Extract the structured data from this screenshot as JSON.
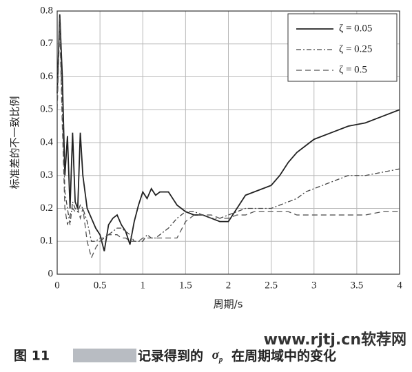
{
  "chart_data": {
    "type": "line",
    "x_label": "周期/s",
    "y_label": "标准差的不一致比例",
    "x": [
      0,
      0.03,
      0.06,
      0.09,
      0.12,
      0.15,
      0.18,
      0.21,
      0.24,
      0.27,
      0.3,
      0.35,
      0.4,
      0.45,
      0.5,
      0.55,
      0.6,
      0.65,
      0.7,
      0.75,
      0.8,
      0.85,
      0.9,
      0.95,
      1.0,
      1.05,
      1.1,
      1.15,
      1.2,
      1.3,
      1.4,
      1.5,
      1.6,
      1.7,
      1.8,
      1.9,
      2.0,
      2.1,
      2.2,
      2.3,
      2.4,
      2.5,
      2.6,
      2.7,
      2.8,
      2.9,
      3.0,
      3.2,
      3.4,
      3.6,
      3.8,
      4.0
    ],
    "series": [
      {
        "name": "ζ = 0.05",
        "color": "#222222",
        "style": "solid",
        "values": [
          0.55,
          0.79,
          0.6,
          0.3,
          0.42,
          0.2,
          0.43,
          0.22,
          0.2,
          0.43,
          0.3,
          0.2,
          0.17,
          0.14,
          0.12,
          0.07,
          0.15,
          0.17,
          0.18,
          0.15,
          0.13,
          0.09,
          0.16,
          0.21,
          0.25,
          0.23,
          0.26,
          0.24,
          0.25,
          0.25,
          0.21,
          0.19,
          0.18,
          0.18,
          0.17,
          0.16,
          0.16,
          0.2,
          0.24,
          0.25,
          0.26,
          0.27,
          0.3,
          0.34,
          0.37,
          0.39,
          0.41,
          0.43,
          0.45,
          0.46,
          0.48,
          0.5
        ]
      },
      {
        "name": "ζ = 0.25",
        "color": "#444444",
        "style": "dashdot",
        "values": [
          0.55,
          0.78,
          0.5,
          0.25,
          0.2,
          0.15,
          0.22,
          0.2,
          0.19,
          0.21,
          0.2,
          0.16,
          0.1,
          0.1,
          0.11,
          0.11,
          0.12,
          0.13,
          0.14,
          0.14,
          0.13,
          0.12,
          0.1,
          0.1,
          0.1,
          0.12,
          0.11,
          0.11,
          0.12,
          0.14,
          0.17,
          0.19,
          0.19,
          0.18,
          0.17,
          0.17,
          0.18,
          0.19,
          0.2,
          0.2,
          0.2,
          0.2,
          0.21,
          0.22,
          0.23,
          0.25,
          0.26,
          0.28,
          0.3,
          0.3,
          0.31,
          0.32
        ]
      },
      {
        "name": "ζ = 0.5",
        "color": "#555555",
        "style": "dashed",
        "values": [
          0.5,
          0.75,
          0.45,
          0.2,
          0.15,
          0.18,
          0.2,
          0.19,
          0.2,
          0.17,
          0.2,
          0.1,
          0.05,
          0.08,
          0.1,
          0.11,
          0.12,
          0.12,
          0.12,
          0.11,
          0.11,
          0.1,
          0.1,
          0.1,
          0.11,
          0.11,
          0.11,
          0.11,
          0.11,
          0.11,
          0.11,
          0.16,
          0.18,
          0.18,
          0.18,
          0.17,
          0.17,
          0.18,
          0.18,
          0.19,
          0.19,
          0.19,
          0.19,
          0.19,
          0.18,
          0.18,
          0.18,
          0.18,
          0.18,
          0.18,
          0.19,
          0.19
        ]
      }
    ],
    "xlim": [
      0,
      4
    ],
    "xticks": [
      0,
      0.5,
      1,
      1.5,
      2,
      2.5,
      3,
      3.5,
      4
    ],
    "ylim": [
      0,
      0.8
    ],
    "yticks": [
      0,
      0.1,
      0.2,
      0.3,
      0.4,
      0.5,
      0.6,
      0.7,
      0.8
    ],
    "grid": true,
    "legend": "top-right"
  },
  "caption": {
    "figure_label": "图 11",
    "text_before": "记录得到的",
    "symbol": "σ",
    "subscript": "p",
    "text_after": "在周期域中的变化"
  },
  "watermark": "www.rjtj.cn软荐网"
}
